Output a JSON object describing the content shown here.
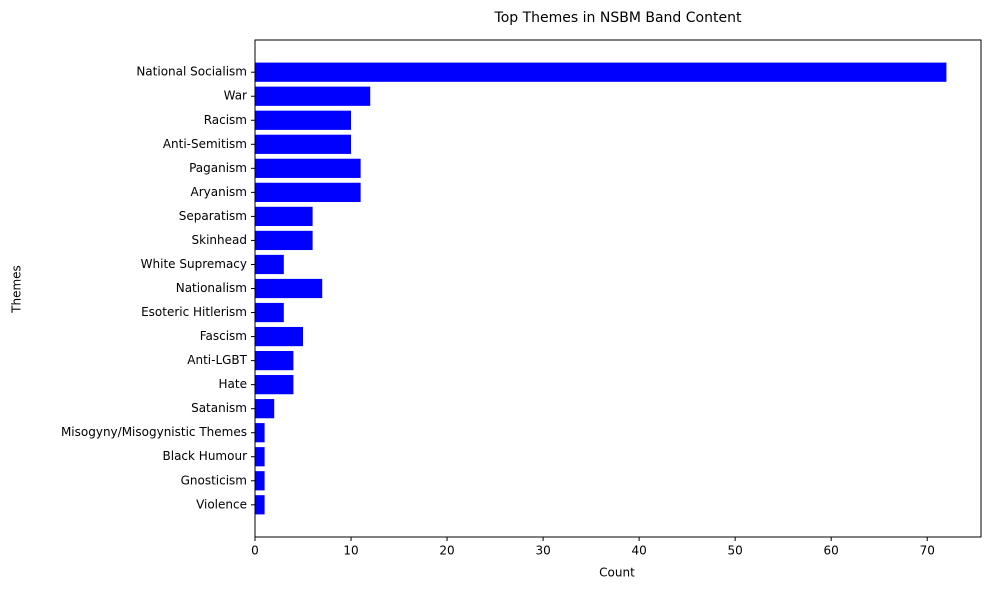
{
  "chart_data": {
    "type": "hbar",
    "title": "Top Themes in NSBM Band Content",
    "x_label": "Count",
    "y_label": "Themes",
    "categories": [
      "National Socialism",
      "War",
      "Racism",
      "Anti-Semitism",
      "Paganism",
      "Aryanism",
      "Separatism",
      "Skinhead",
      "White Supremacy",
      "Nationalism",
      "Esoteric Hitlerism",
      "Fascism",
      "Anti-LGBT",
      "Hate",
      "Satanism",
      "Misogyny/Misogynistic Themes",
      "Black Humour",
      "Gnosticism",
      "Violence"
    ],
    "values": [
      72,
      12,
      10,
      10,
      11,
      11,
      6,
      6,
      3,
      7,
      3,
      5,
      4,
      4,
      2,
      1,
      1,
      1,
      1
    ],
    "color": "#0000ff",
    "xlim": [
      0,
      75.6
    ],
    "xticks": [
      0,
      10,
      20,
      30,
      40,
      50,
      60,
      70
    ],
    "grid": false
  }
}
